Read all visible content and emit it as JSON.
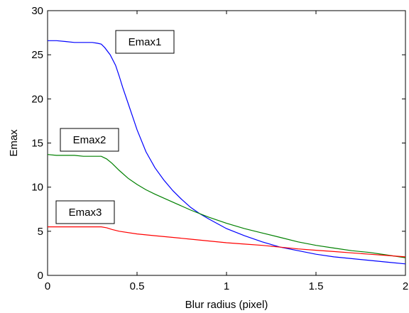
{
  "chart_data": {
    "type": "line",
    "title": "",
    "xlabel": "Blur radius (pixel)",
    "ylabel": "Emax",
    "xlim": [
      0,
      2
    ],
    "ylim": [
      0,
      30
    ],
    "xticks": [
      "0",
      "0.5",
      "1",
      "1.5",
      "2"
    ],
    "yticks": [
      "0",
      "5",
      "10",
      "15",
      "20",
      "25",
      "30"
    ],
    "grid": false,
    "series": [
      {
        "name": "Emax1",
        "color": "#0000ff",
        "x": [
          0,
          0.05,
          0.1,
          0.15,
          0.2,
          0.25,
          0.28,
          0.3,
          0.32,
          0.35,
          0.38,
          0.4,
          0.42,
          0.45,
          0.48,
          0.5,
          0.55,
          0.6,
          0.65,
          0.7,
          0.75,
          0.8,
          0.85,
          0.9,
          1.0,
          1.1,
          1.2,
          1.3,
          1.4,
          1.5,
          1.6,
          1.7,
          1.8,
          1.9,
          2.0
        ],
        "values": [
          26.6,
          26.6,
          26.5,
          26.4,
          26.4,
          26.4,
          26.3,
          26.2,
          25.8,
          25.0,
          23.8,
          22.6,
          21.3,
          19.5,
          17.7,
          16.5,
          14.0,
          12.2,
          10.8,
          9.6,
          8.6,
          7.7,
          7.0,
          6.4,
          5.3,
          4.5,
          3.8,
          3.2,
          2.8,
          2.4,
          2.1,
          1.9,
          1.7,
          1.5,
          1.3
        ]
      },
      {
        "name": "Emax2",
        "color": "#008000",
        "x": [
          0,
          0.05,
          0.1,
          0.15,
          0.2,
          0.25,
          0.3,
          0.33,
          0.36,
          0.4,
          0.45,
          0.5,
          0.55,
          0.6,
          0.7,
          0.8,
          0.9,
          1.0,
          1.1,
          1.2,
          1.3,
          1.4,
          1.5,
          1.6,
          1.7,
          1.8,
          1.9,
          2.0
        ],
        "values": [
          13.7,
          13.6,
          13.6,
          13.6,
          13.5,
          13.5,
          13.5,
          13.2,
          12.7,
          11.9,
          11.0,
          10.3,
          9.7,
          9.2,
          8.3,
          7.4,
          6.6,
          5.9,
          5.3,
          4.8,
          4.3,
          3.8,
          3.4,
          3.1,
          2.8,
          2.6,
          2.3,
          2.0
        ]
      },
      {
        "name": "Emax3",
        "color": "#ff0000",
        "x": [
          0,
          0.05,
          0.1,
          0.15,
          0.2,
          0.25,
          0.3,
          0.33,
          0.36,
          0.4,
          0.5,
          0.6,
          0.7,
          0.8,
          0.9,
          1.0,
          1.1,
          1.2,
          1.3,
          1.4,
          1.5,
          1.6,
          1.7,
          1.8,
          1.9,
          2.0
        ],
        "values": [
          5.5,
          5.5,
          5.5,
          5.5,
          5.5,
          5.5,
          5.5,
          5.4,
          5.2,
          5.0,
          4.7,
          4.5,
          4.3,
          4.1,
          3.9,
          3.7,
          3.55,
          3.4,
          3.2,
          3.0,
          2.85,
          2.7,
          2.55,
          2.4,
          2.25,
          2.1
        ]
      }
    ],
    "annotations": [
      {
        "text": "Emax1",
        "series": 0
      },
      {
        "text": "Emax2",
        "series": 1
      },
      {
        "text": "Emax3",
        "series": 2
      }
    ]
  }
}
